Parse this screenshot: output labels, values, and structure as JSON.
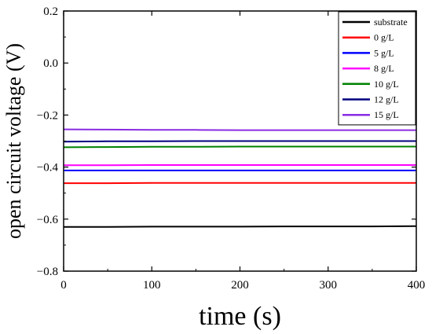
{
  "chart_data": {
    "type": "line",
    "title": "",
    "xlabel": "time (s)",
    "ylabel": "open circuit voltage (V)",
    "xlim": [
      0,
      400
    ],
    "ylim": [
      -0.8,
      0.2
    ],
    "x_ticks": [
      0,
      100,
      200,
      300,
      400
    ],
    "x_tick_labels": [
      "0",
      "100",
      "200",
      "300",
      "400"
    ],
    "y_ticks": [
      -0.8,
      -0.6,
      -0.4,
      -0.2,
      0.0,
      0.2
    ],
    "y_tick_labels": [
      "−0.8",
      "−0.6",
      "−0.4",
      "−0.2",
      "0.0",
      "0.2"
    ],
    "grid": false,
    "legend_position": "top-right",
    "x": [
      0,
      50,
      100,
      150,
      200,
      250,
      300,
      350,
      400
    ],
    "series": [
      {
        "name": "substrate",
        "color": "#000000",
        "values": [
          -0.63,
          -0.63,
          -0.629,
          -0.629,
          -0.629,
          -0.628,
          -0.628,
          -0.628,
          -0.627
        ]
      },
      {
        "name": "0 g/L",
        "color": "#ff0000",
        "values": [
          -0.462,
          -0.462,
          -0.461,
          -0.461,
          -0.461,
          -0.461,
          -0.461,
          -0.461,
          -0.461
        ]
      },
      {
        "name": "5 g/L",
        "color": "#0000ff",
        "values": [
          -0.413,
          -0.413,
          -0.413,
          -0.413,
          -0.413,
          -0.413,
          -0.413,
          -0.413,
          -0.413
        ]
      },
      {
        "name": "8 g/L",
        "color": "#ff00ff",
        "values": [
          -0.393,
          -0.393,
          -0.392,
          -0.392,
          -0.392,
          -0.392,
          -0.392,
          -0.392,
          -0.392
        ]
      },
      {
        "name": "10 g/L",
        "color": "#008000",
        "values": [
          -0.324,
          -0.323,
          -0.322,
          -0.322,
          -0.321,
          -0.321,
          -0.321,
          -0.321,
          -0.321
        ]
      },
      {
        "name": "12 g/L",
        "color": "#000080",
        "values": [
          -0.302,
          -0.301,
          -0.301,
          -0.3,
          -0.3,
          -0.3,
          -0.3,
          -0.3,
          -0.3
        ]
      },
      {
        "name": "15 g/L",
        "color": "#8a2be2",
        "values": [
          -0.255,
          -0.256,
          -0.257,
          -0.257,
          -0.258,
          -0.258,
          -0.258,
          -0.258,
          -0.258
        ]
      }
    ]
  }
}
